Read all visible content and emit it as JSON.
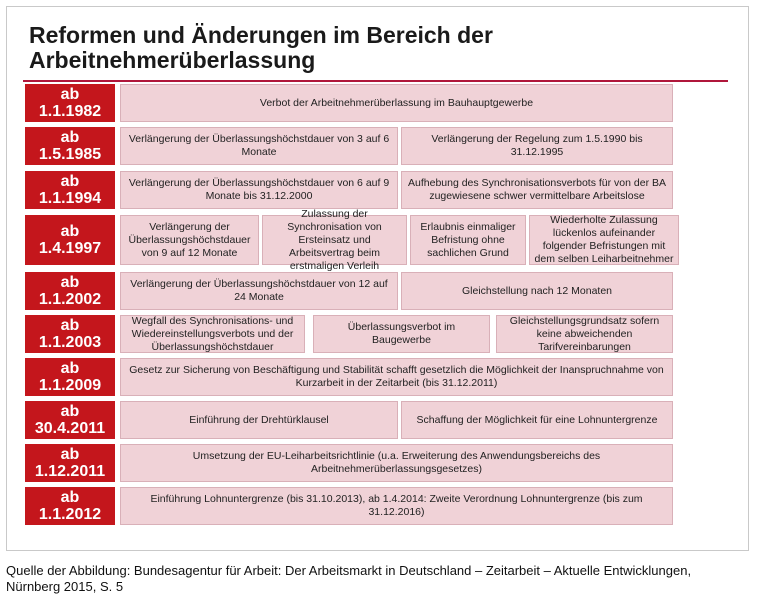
{
  "title_line1": "Reformen und Änderungen im Bereich der",
  "title_line2": "Arbeitnehmerüberlassung",
  "rows": [
    {
      "date_top": "ab",
      "date_bottom": "1.1.1982",
      "cells": [
        "Verbot der Arbeitnehmerüberlassung im Bauhauptgewerbe"
      ]
    },
    {
      "date_top": "ab",
      "date_bottom": "1.5.1985",
      "cells": [
        "Verlängerung der Überlassungshöchstdauer von 3 auf 6 Monate",
        "Verlängerung der Regelung zum 1.5.1990 bis 31.12.1995"
      ]
    },
    {
      "date_top": "ab",
      "date_bottom": "1.1.1994",
      "cells": [
        "Verlängerung der Überlassungshöchstdauer von 6 auf 9 Monate bis 31.12.2000",
        "Aufhebung des Synchronisationsverbots für von der BA zugewiesene schwer vermittelbare Arbeitslose"
      ]
    },
    {
      "date_top": "ab",
      "date_bottom": "1.4.1997",
      "cells": [
        "Verlängerung der Überlassungshöchstdauer von 9 auf 12 Monate",
        "Zulassung der Synchronisation von Ersteinsatz und Arbeitsvertrag beim erstmaligen Verleih",
        "Erlaubnis einmaliger Befristung ohne sachlichen Grund",
        "Wiederholte Zulassung lückenlos aufeinander folgender Befristungen mit dem selben Leiharbeitnehmer"
      ]
    },
    {
      "date_top": "ab",
      "date_bottom": "1.1.2002",
      "cells": [
        "Verlängerung der Überlassungshöchstdauer von 12 auf 24 Monate",
        "Gleichstellung nach 12 Monaten"
      ]
    },
    {
      "date_top": "ab",
      "date_bottom": "1.1.2003",
      "cells": [
        "Wegfall des Synchronisations- und Wiedereinstellungsverbots und der Überlassungshöchstdauer",
        "Überlassungsverbot im Baugewerbe",
        "Gleichstellungsgrundsatz sofern keine abweichenden Tarifvereinbarungen"
      ]
    },
    {
      "date_top": "ab",
      "date_bottom": "1.1.2009",
      "cells": [
        "Gesetz zur Sicherung von Beschäftigung und Stabilität schafft gesetzlich die Möglichkeit der Inanspruchnahme von Kurzarbeit in der Zeitarbeit (bis 31.12.2011)"
      ]
    },
    {
      "date_top": "ab",
      "date_bottom": "30.4.2011",
      "cells": [
        "Einführung der Drehtürklausel",
        "Schaffung der Möglichkeit für eine Lohnuntergrenze"
      ]
    },
    {
      "date_top": "ab",
      "date_bottom": "1.12.2011",
      "cells": [
        "Umsetzung der EU-Leiharbeitsrichtlinie (u.a. Erweiterung des Anwendungsbereichs des Arbeitnehmerüberlassungsgesetzes)"
      ]
    },
    {
      "date_top": "ab",
      "date_bottom": "1.1.2012",
      "cells": [
        "Einführung Lohnuntergrenze (bis 31.10.2013), ab 1.4.2014: Zweite Verordnung Lohnuntergrenze (bis zum 31.12.2016)"
      ]
    }
  ],
  "caption_line1": "Quelle der Abbildung: Bundesagentur für Arbeit: Der Arbeitsmarkt in Deutschland – Zeitarbeit – Aktuelle Entwicklungen,",
  "caption_line2": "Nürnberg 2015, S. 5",
  "colors": {
    "date_red": "#c4161c",
    "cell_pink": "#f0d2d7",
    "rule": "#b0173b"
  }
}
